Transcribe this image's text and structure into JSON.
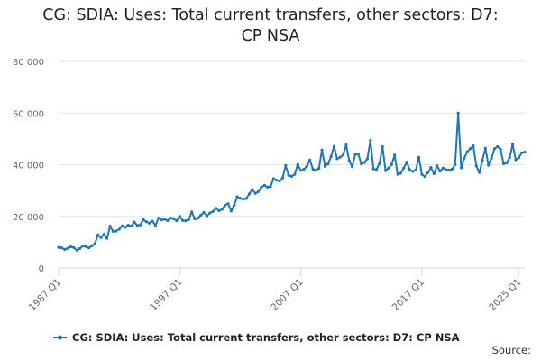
{
  "title_lines": [
    "CG: SDIA: Uses: Total current transfers, other sectors: D7:",
    "CP NSA"
  ],
  "source_label": "Source:",
  "colors": {
    "series": "#1f77b4",
    "grid": "#e6e6e6",
    "axis": "#ccd6eb"
  },
  "chart_data": {
    "type": "line",
    "title": "CG: SDIA: Uses: Total current transfers, other sectors: D7: CP NSA",
    "xlabel": "",
    "ylabel": "",
    "ylim": [
      0,
      80000
    ],
    "y_ticks": [
      0,
      20000,
      40000,
      60000,
      80000
    ],
    "y_tick_labels": [
      "0",
      "20 000",
      "40 000",
      "60 000",
      "80 000"
    ],
    "x_tick_labels": [
      "1987 Q1",
      "1997 Q1",
      "2007 Q1",
      "2017 Q1",
      "2025 Q1"
    ],
    "x_start": "1987 Q1",
    "grid": true,
    "legend": "bottom",
    "series": [
      {
        "name": "CG: SDIA: Uses: Total current transfers, other sectors: D7: CP NSA",
        "values": [
          8000,
          7800,
          7200,
          7600,
          8200,
          7900,
          6900,
          7500,
          8500,
          8300,
          7800,
          8600,
          9400,
          12800,
          11800,
          13100,
          11500,
          16200,
          14200,
          14300,
          15000,
          16300,
          15800,
          16600,
          16200,
          17800,
          16500,
          16700,
          18700,
          17900,
          17400,
          18100,
          16500,
          19300,
          18600,
          18900,
          18400,
          19400,
          19100,
          18300,
          20000,
          18400,
          18300,
          18800,
          21700,
          19000,
          19300,
          20500,
          21500,
          20200,
          21300,
          21900,
          23100,
          22200,
          22700,
          24400,
          24900,
          22100,
          24300,
          27600,
          27000,
          26600,
          26900,
          28700,
          30400,
          28900,
          29600,
          31300,
          32000,
          31300,
          31500,
          34600,
          34000,
          33700,
          34900,
          39700,
          35900,
          35500,
          36300,
          40100,
          37800,
          38200,
          39400,
          41800,
          38300,
          37800,
          38600,
          45700,
          39400,
          40300,
          43200,
          47100,
          42300,
          42900,
          43800,
          47700,
          41500,
          39200,
          44000,
          44100,
          40300,
          40800,
          42300,
          49400,
          38400,
          38100,
          40500,
          47000,
          37700,
          38700,
          40100,
          43700,
          36300,
          36700,
          38700,
          41000,
          38000,
          37400,
          37900,
          42900,
          36300,
          35400,
          37000,
          38900,
          36500,
          39600,
          37500,
          38700,
          38100,
          37900,
          38300,
          40100,
          60000,
          38800,
          42500,
          45000,
          46200,
          47300,
          39500,
          37000,
          41700,
          46400,
          39800,
          42500,
          46200,
          47000,
          45900,
          40400,
          40700,
          42800,
          47900,
          41900,
          42700,
          44600,
          44900
        ]
      }
    ]
  }
}
